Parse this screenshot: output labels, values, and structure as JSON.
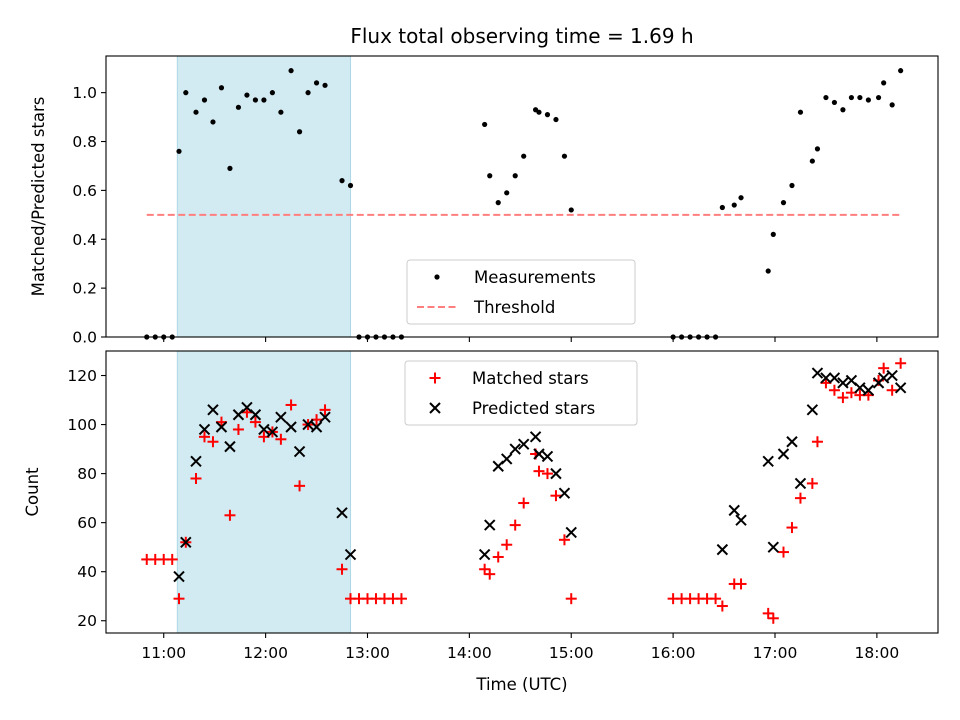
{
  "chart_data": {
    "title": "Flux total observing time = 1.69 h",
    "xlabel": "Time (UTC)",
    "x_unit": "hours UTC",
    "xlim": [
      "10:26",
      "18:36"
    ],
    "x_ticks": [
      "11:00",
      "12:00",
      "13:00",
      "14:00",
      "15:00",
      "16:00",
      "17:00",
      "18:00"
    ],
    "colors": {
      "measurements": "#000000",
      "threshold": "#ff7f7f",
      "matched": "#ff0000",
      "predicted": "#000000",
      "shaded": "#add8e6"
    },
    "shaded_interval": [
      "11:08",
      "12:50"
    ],
    "panels": [
      {
        "type": "scatter",
        "ylabel": "Matched/Predicted stars",
        "ylim": [
          0,
          1.15
        ],
        "y_ticks": [
          0.0,
          0.2,
          0.4,
          0.6,
          0.8,
          1.0
        ],
        "y_tick_labels": [
          "0.0",
          "0.2",
          "0.4",
          "0.6",
          "0.8",
          "1.0"
        ],
        "legend": {
          "location": "lower center",
          "entries": [
            "Measurements",
            "Threshold"
          ]
        },
        "threshold": {
          "name": "Threshold",
          "y": 0.5,
          "x_range": [
            "10:50",
            "18:15"
          ],
          "style": "dashed"
        },
        "series": [
          {
            "name": "Measurements",
            "marker": "dot",
            "points": [
              [
                "10:50",
                0.0
              ],
              [
                "10:55",
                0.0
              ],
              [
                "11:00",
                0.0
              ],
              [
                "11:05",
                0.0
              ],
              [
                "11:09",
                0.76
              ],
              [
                "11:13",
                1.0
              ],
              [
                "11:19",
                0.92
              ],
              [
                "11:24",
                0.97
              ],
              [
                "11:29",
                0.88
              ],
              [
                "11:34",
                1.02
              ],
              [
                "11:39",
                0.69
              ],
              [
                "11:44",
                0.94
              ],
              [
                "11:49",
                0.99
              ],
              [
                "11:54",
                0.97
              ],
              [
                "11:59",
                0.97
              ],
              [
                "12:04",
                1.0
              ],
              [
                "12:09",
                0.92
              ],
              [
                "12:15",
                1.09
              ],
              [
                "12:20",
                0.84
              ],
              [
                "12:25",
                1.0
              ],
              [
                "12:30",
                1.04
              ],
              [
                "12:35",
                1.03
              ],
              [
                "12:45",
                0.64
              ],
              [
                "12:50",
                0.62
              ],
              [
                "12:55",
                0.0
              ],
              [
                "13:00",
                0.0
              ],
              [
                "13:05",
                0.0
              ],
              [
                "13:10",
                0.0
              ],
              [
                "13:15",
                0.0
              ],
              [
                "13:20",
                0.0
              ],
              [
                "14:09",
                0.87
              ],
              [
                "14:12",
                0.66
              ],
              [
                "14:17",
                0.55
              ],
              [
                "14:22",
                0.59
              ],
              [
                "14:27",
                0.66
              ],
              [
                "14:32",
                0.74
              ],
              [
                "14:39",
                0.93
              ],
              [
                "14:41",
                0.92
              ],
              [
                "14:46",
                0.91
              ],
              [
                "14:51",
                0.89
              ],
              [
                "14:56",
                0.74
              ],
              [
                "15:00",
                0.52
              ],
              [
                "16:00",
                0.0
              ],
              [
                "16:05",
                0.0
              ],
              [
                "16:10",
                0.0
              ],
              [
                "16:15",
                0.0
              ],
              [
                "16:20",
                0.0
              ],
              [
                "16:25",
                0.0
              ],
              [
                "16:29",
                0.53
              ],
              [
                "16:36",
                0.54
              ],
              [
                "16:40",
                0.57
              ],
              [
                "16:56",
                0.27
              ],
              [
                "16:59",
                0.42
              ],
              [
                "17:05",
                0.55
              ],
              [
                "17:10",
                0.62
              ],
              [
                "17:15",
                0.92
              ],
              [
                "17:22",
                0.72
              ],
              [
                "17:25",
                0.77
              ],
              [
                "17:30",
                0.98
              ],
              [
                "17:35",
                0.96
              ],
              [
                "17:40",
                0.93
              ],
              [
                "17:45",
                0.98
              ],
              [
                "17:50",
                0.98
              ],
              [
                "17:55",
                0.97
              ],
              [
                "18:01",
                0.98
              ],
              [
                "18:04",
                1.04
              ],
              [
                "18:09",
                0.95
              ],
              [
                "18:14",
                1.09
              ]
            ]
          }
        ]
      },
      {
        "type": "scatter",
        "ylabel": "Count",
        "ylim": [
          15,
          130
        ],
        "y_ticks": [
          20,
          40,
          60,
          80,
          100,
          120
        ],
        "y_tick_labels": [
          "20",
          "40",
          "60",
          "80",
          "100",
          "120"
        ],
        "legend": {
          "location": "upper center",
          "entries": [
            "Matched stars",
            "Predicted stars"
          ]
        },
        "series": [
          {
            "name": "Matched stars",
            "marker": "plus",
            "points": [
              [
                "10:50",
                45
              ],
              [
                "10:55",
                45
              ],
              [
                "11:00",
                45
              ],
              [
                "11:05",
                45
              ],
              [
                "11:09",
                29
              ],
              [
                "11:13",
                52
              ],
              [
                "11:19",
                78
              ],
              [
                "11:24",
                95
              ],
              [
                "11:29",
                93
              ],
              [
                "11:34",
                101
              ],
              [
                "11:39",
                63
              ],
              [
                "11:44",
                98
              ],
              [
                "11:49",
                105
              ],
              [
                "11:54",
                101
              ],
              [
                "11:59",
                95
              ],
              [
                "12:04",
                97
              ],
              [
                "12:09",
                94
              ],
              [
                "12:15",
                108
              ],
              [
                "12:20",
                75
              ],
              [
                "12:25",
                100
              ],
              [
                "12:30",
                102
              ],
              [
                "12:35",
                106
              ],
              [
                "12:45",
                41
              ],
              [
                "12:50",
                29
              ],
              [
                "12:55",
                29
              ],
              [
                "13:00",
                29
              ],
              [
                "13:05",
                29
              ],
              [
                "13:10",
                29
              ],
              [
                "13:15",
                29
              ],
              [
                "13:20",
                29
              ],
              [
                "14:09",
                41
              ],
              [
                "14:12",
                39
              ],
              [
                "14:17",
                46
              ],
              [
                "14:22",
                51
              ],
              [
                "14:27",
                59
              ],
              [
                "14:32",
                68
              ],
              [
                "14:39",
                88
              ],
              [
                "14:41",
                81
              ],
              [
                "14:46",
                80
              ],
              [
                "14:51",
                71
              ],
              [
                "14:56",
                53
              ],
              [
                "15:00",
                29
              ],
              [
                "16:00",
                29
              ],
              [
                "16:05",
                29
              ],
              [
                "16:10",
                29
              ],
              [
                "16:15",
                29
              ],
              [
                "16:20",
                29
              ],
              [
                "16:25",
                29
              ],
              [
                "16:29",
                26
              ],
              [
                "16:36",
                35
              ],
              [
                "16:40",
                35
              ],
              [
                "16:56",
                23
              ],
              [
                "16:59",
                21
              ],
              [
                "17:05",
                48
              ],
              [
                "17:10",
                58
              ],
              [
                "17:15",
                70
              ],
              [
                "17:22",
                76
              ],
              [
                "17:25",
                93
              ],
              [
                "17:30",
                117
              ],
              [
                "17:35",
                114
              ],
              [
                "17:40",
                111
              ],
              [
                "17:45",
                113
              ],
              [
                "17:50",
                112
              ],
              [
                "17:55",
                112
              ],
              [
                "18:01",
                118
              ],
              [
                "18:04",
                123
              ],
              [
                "18:09",
                114
              ],
              [
                "18:14",
                125
              ]
            ]
          },
          {
            "name": "Predicted stars",
            "marker": "x",
            "points": [
              [
                "11:09",
                38
              ],
              [
                "11:13",
                52
              ],
              [
                "11:19",
                85
              ],
              [
                "11:24",
                98
              ],
              [
                "11:29",
                106
              ],
              [
                "11:34",
                99
              ],
              [
                "11:39",
                91
              ],
              [
                "11:44",
                104
              ],
              [
                "11:49",
                107
              ],
              [
                "11:54",
                104
              ],
              [
                "11:59",
                98
              ],
              [
                "12:04",
                97
              ],
              [
                "12:09",
                103
              ],
              [
                "12:15",
                99
              ],
              [
                "12:20",
                89
              ],
              [
                "12:25",
                100
              ],
              [
                "12:30",
                99
              ],
              [
                "12:35",
                103
              ],
              [
                "12:45",
                64
              ],
              [
                "12:50",
                47
              ],
              [
                "14:09",
                47
              ],
              [
                "14:12",
                59
              ],
              [
                "14:17",
                83
              ],
              [
                "14:22",
                86
              ],
              [
                "14:27",
                90
              ],
              [
                "14:32",
                92
              ],
              [
                "14:39",
                95
              ],
              [
                "14:41",
                88
              ],
              [
                "14:46",
                87
              ],
              [
                "14:51",
                80
              ],
              [
                "14:56",
                72
              ],
              [
                "15:00",
                56
              ],
              [
                "16:29",
                49
              ],
              [
                "16:36",
                65
              ],
              [
                "16:40",
                61
              ],
              [
                "16:56",
                85
              ],
              [
                "16:59",
                50
              ],
              [
                "17:05",
                88
              ],
              [
                "17:10",
                93
              ],
              [
                "17:15",
                76
              ],
              [
                "17:22",
                106
              ],
              [
                "17:25",
                121
              ],
              [
                "17:30",
                119
              ],
              [
                "17:35",
                119
              ],
              [
                "17:40",
                117
              ],
              [
                "17:45",
                118
              ],
              [
                "17:50",
                115
              ],
              [
                "17:55",
                114
              ],
              [
                "18:01",
                117
              ],
              [
                "18:04",
                119
              ],
              [
                "18:09",
                120
              ],
              [
                "18:14",
                115
              ]
            ]
          }
        ]
      }
    ]
  }
}
